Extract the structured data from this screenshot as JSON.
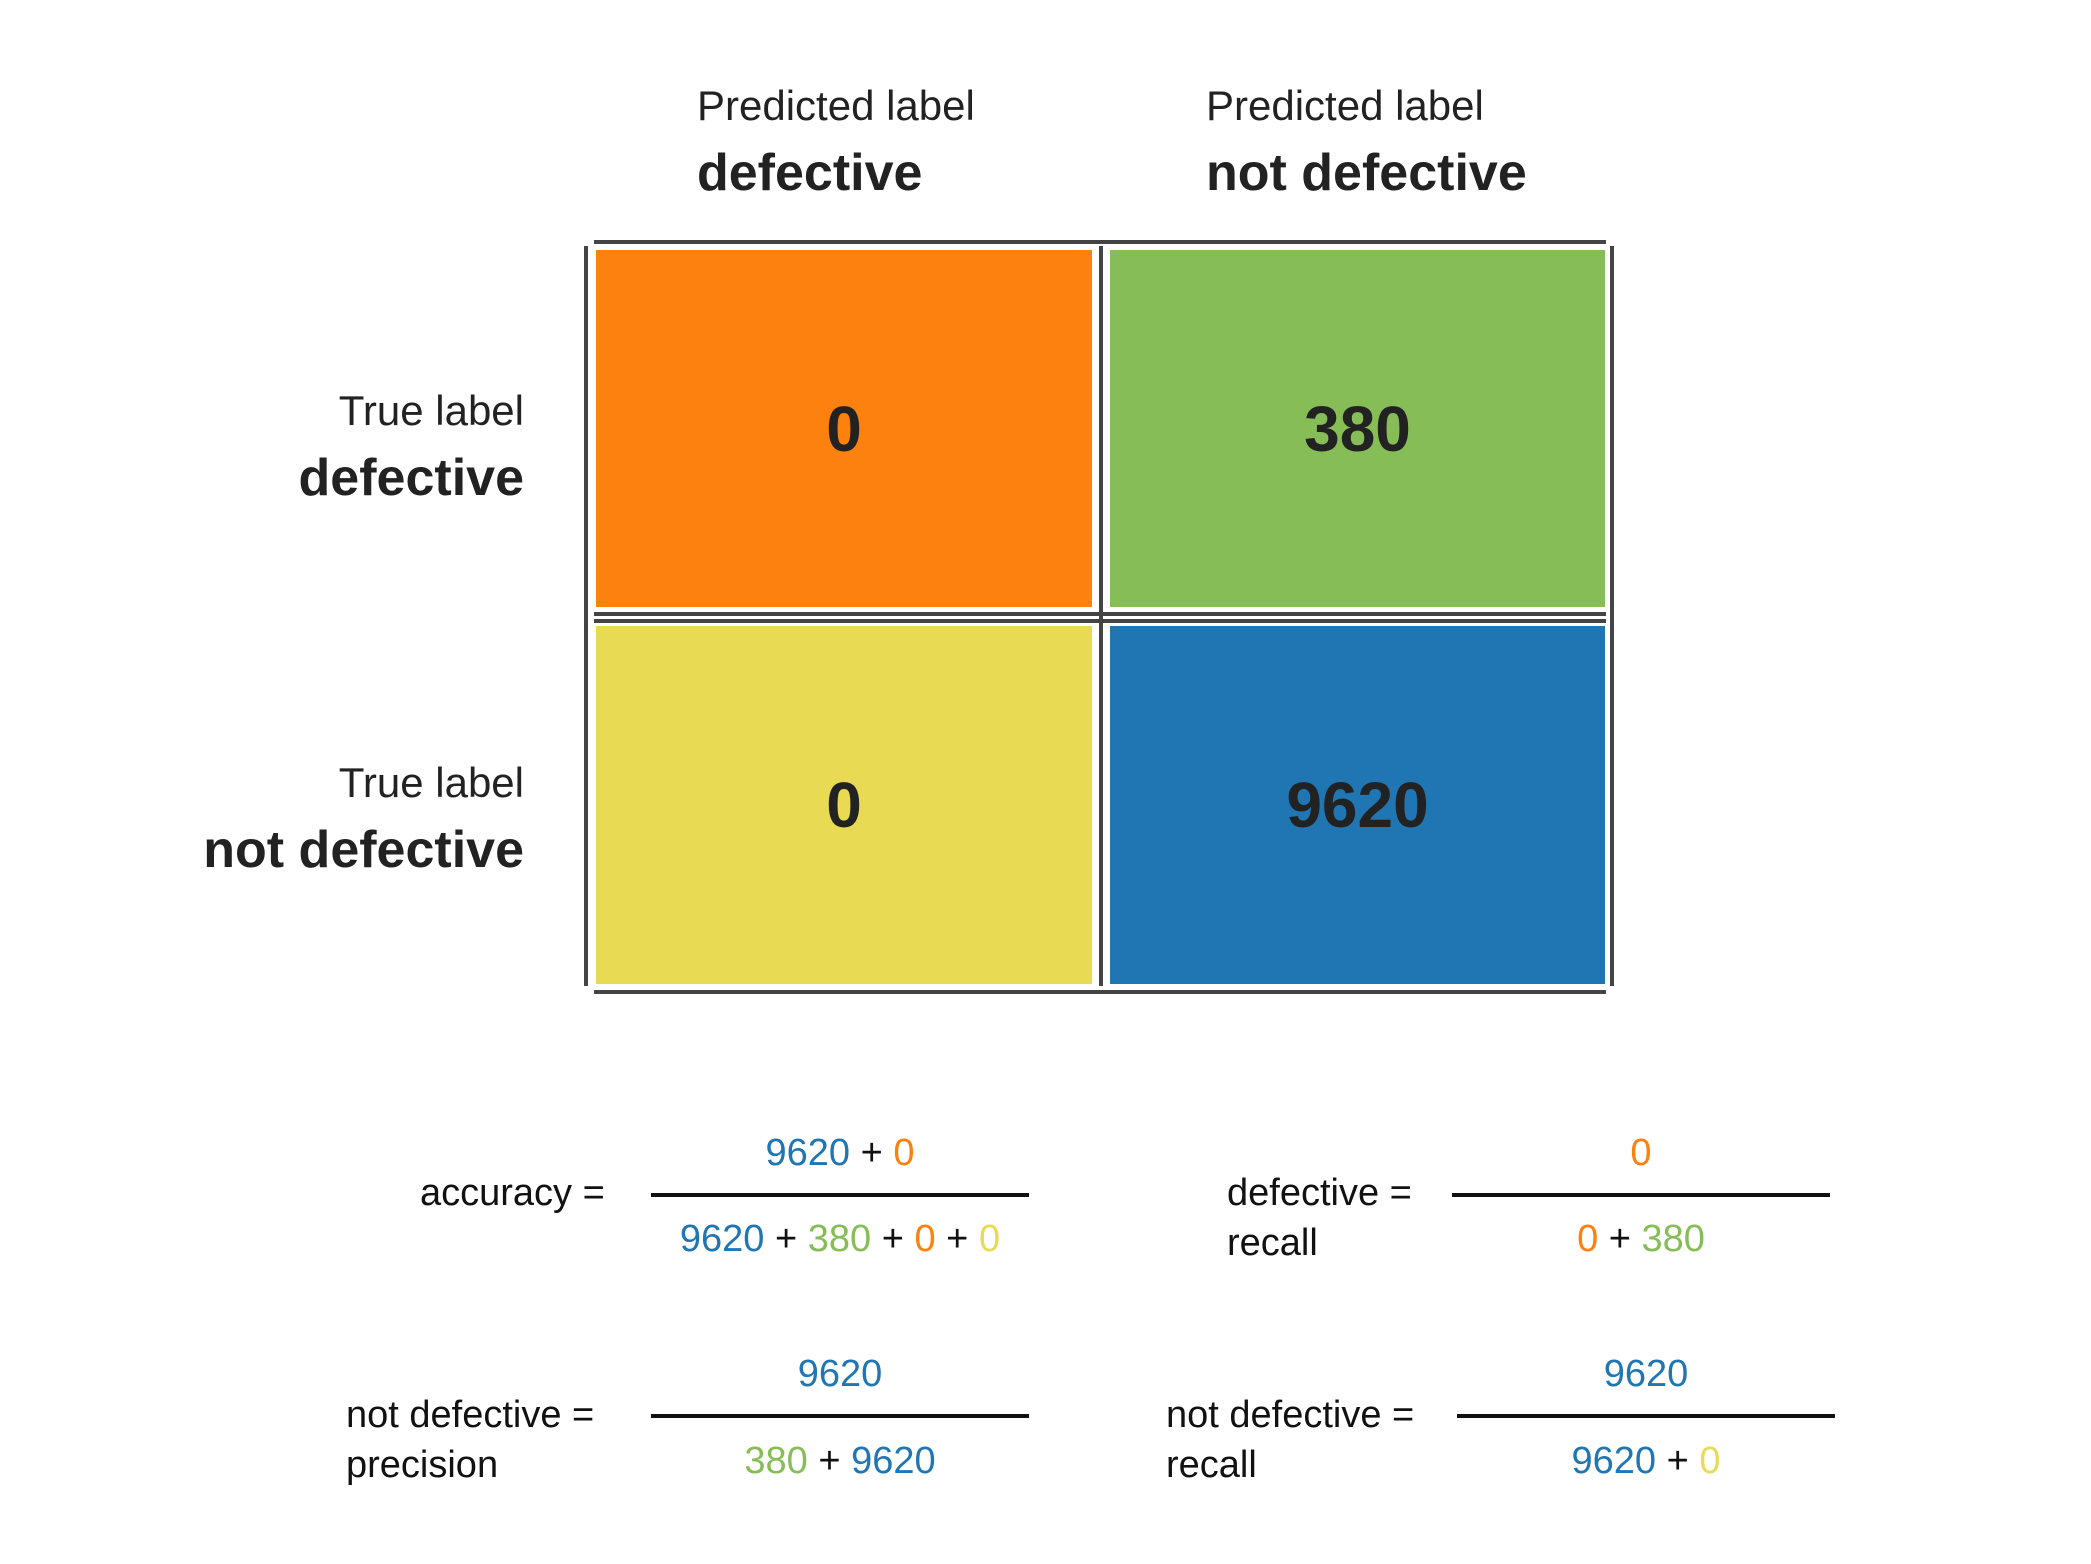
{
  "colors": {
    "tp": "#fc810f",
    "fn": "#86bd57",
    "fp": "#e8db53",
    "tn": "#2076b3",
    "grid": "#444444",
    "text": "#222222"
  },
  "columns": [
    {
      "light": "Predicted label",
      "bold": "defective"
    },
    {
      "light": "Predicted label",
      "bold": "not defective"
    }
  ],
  "rows": [
    {
      "light": "True label",
      "bold": "defective"
    },
    {
      "light": "True label",
      "bold": "not defective"
    }
  ],
  "matrix": {
    "cells": [
      {
        "value": "0",
        "color_key": "tp"
      },
      {
        "value": "380",
        "color_key": "fn"
      },
      {
        "value": "0",
        "color_key": "fp"
      },
      {
        "value": "9620",
        "color_key": "tn"
      }
    ]
  },
  "formulas": {
    "accuracy": {
      "label": "accuracy =",
      "numerator": [
        {
          "text": "9620",
          "color": "#2076b3"
        },
        {
          "text": " + ",
          "color": "#111111"
        },
        {
          "text": "0",
          "color": "#fc810f"
        }
      ],
      "denominator": [
        {
          "text": "9620",
          "color": "#2076b3"
        },
        {
          "text": " + ",
          "color": "#111111"
        },
        {
          "text": "380",
          "color": "#86bd57"
        },
        {
          "text": " + ",
          "color": "#111111"
        },
        {
          "text": "0",
          "color": "#fc810f"
        },
        {
          "text": " + ",
          "color": "#111111"
        },
        {
          "text": "0",
          "color": "#e8db53"
        }
      ]
    },
    "defective_recall": {
      "label_line1": "defective =",
      "label_line2": "recall",
      "numerator": [
        {
          "text": "0",
          "color": "#fc810f"
        }
      ],
      "denominator": [
        {
          "text": "0",
          "color": "#fc810f"
        },
        {
          "text": " + ",
          "color": "#111111"
        },
        {
          "text": "380",
          "color": "#86bd57"
        }
      ]
    },
    "not_defective_precision": {
      "label_line1": "not defective =",
      "label_line2": "precision",
      "numerator": [
        {
          "text": "9620",
          "color": "#2076b3"
        }
      ],
      "denominator": [
        {
          "text": "380",
          "color": "#86bd57"
        },
        {
          "text": " + ",
          "color": "#111111"
        },
        {
          "text": "9620",
          "color": "#2076b3"
        }
      ]
    },
    "not_defective_recall": {
      "label_line1": "not defective =",
      "label_line2": "recall",
      "numerator": [
        {
          "text": "9620",
          "color": "#2076b3"
        }
      ],
      "denominator": [
        {
          "text": "9620",
          "color": "#2076b3"
        },
        {
          "text": " + ",
          "color": "#111111"
        },
        {
          "text": "0",
          "color": "#e8db53"
        }
      ]
    }
  }
}
